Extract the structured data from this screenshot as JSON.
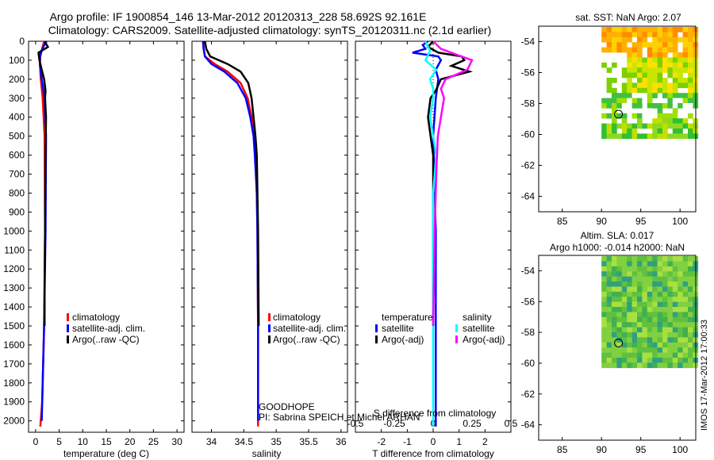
{
  "header": {
    "title_line1": "Argo profile: IF 1900854_146 13-Mar-2012 20120313_228 58.692S 92.161E",
    "title_line2": "Climatology: CARS2009. Satellite-adjusted climatology: synTS_20120311.nc (2.1d earlier)"
  },
  "stamp": "IMOS 17-Mar-2012 17:00:33",
  "annotations": {
    "platform": "GOODHOPE",
    "pi": "PI: Sabrina SPEICH et Michel ARHAN"
  },
  "colors": {
    "climatology": "#ff0000",
    "satellite": "#0000ff",
    "argo": "#000000",
    "sal_satellite": "#00ffff",
    "sal_argo": "#ff00ff"
  },
  "chart_data": [
    {
      "type": "line",
      "name": "temperature-profile",
      "xlabel": "temperature (deg C)",
      "ylabel": "",
      "xlim": [
        -1.5,
        31.5
      ],
      "ylim": [
        2060,
        0
      ],
      "xticks": [
        0,
        5,
        10,
        15,
        20,
        25,
        30
      ],
      "yticks": [
        0,
        100,
        200,
        300,
        400,
        500,
        600,
        700,
        800,
        900,
        1000,
        1100,
        1200,
        1300,
        1400,
        1500,
        1600,
        1700,
        1800,
        1900,
        2000
      ],
      "legend": [
        "climatology",
        "satellite-adj. clim.",
        "Argo(..raw -QC)"
      ],
      "series": [
        {
          "name": "climatology",
          "depth": [
            0,
            40,
            80,
            120,
            200,
            300,
            500,
            1000,
            1500,
            1900,
            2030
          ],
          "values": [
            1.8,
            1.4,
            1.0,
            0.9,
            1.1,
            1.5,
            1.9,
            2.0,
            1.8,
            1.4,
            1.0
          ]
        },
        {
          "name": "satellite-adj. clim.",
          "depth": [
            0,
            40,
            80,
            120,
            200,
            300,
            500,
            1000,
            1500,
            1900,
            2000
          ],
          "values": [
            2.3,
            1.4,
            0.9,
            0.9,
            1.3,
            1.9,
            2.2,
            2.1,
            1.8,
            1.4,
            1.3
          ]
        },
        {
          "name": "Argo(..raw -QC)",
          "depth": [
            0,
            30,
            60,
            100,
            150,
            200,
            260,
            300,
            400,
            600,
            900,
            1000,
            1300,
            1500
          ],
          "values": [
            1.9,
            2.6,
            0.6,
            0.8,
            1.3,
            1.8,
            2.1,
            2.0,
            2.2,
            2.1,
            2.0,
            2.0,
            1.9,
            1.9
          ]
        }
      ]
    },
    {
      "type": "line",
      "name": "salinity-profile",
      "xlabel": "salinity",
      "xlim": [
        33.7,
        36.1
      ],
      "ylim": [
        2060,
        0
      ],
      "xticks": [
        34,
        34.5,
        35,
        35.5,
        36
      ],
      "legend": [
        "climatology",
        "satellite-adj. clim.",
        "Argo(..raw -QC)"
      ],
      "series": [
        {
          "name": "climatology",
          "depth": [
            0,
            40,
            80,
            120,
            160,
            220,
            300,
            400,
            500,
            600,
            800,
            1000,
            1500,
            2000,
            2030
          ],
          "values": [
            33.87,
            33.88,
            33.9,
            34.05,
            34.25,
            34.45,
            34.56,
            34.62,
            34.66,
            34.68,
            34.7,
            34.71,
            34.72,
            34.72,
            34.72
          ]
        },
        {
          "name": "satellite-adj. clim.",
          "depth": [
            0,
            40,
            80,
            120,
            160,
            220,
            300,
            400,
            500,
            600,
            800,
            1000,
            1500,
            2000
          ],
          "values": [
            33.87,
            33.88,
            33.9,
            34.0,
            34.2,
            34.4,
            34.53,
            34.6,
            34.65,
            34.67,
            34.7,
            34.71,
            34.72,
            34.72
          ]
        },
        {
          "name": "Argo(..raw -QC)",
          "depth": [
            0,
            40,
            80,
            120,
            160,
            220,
            300,
            400,
            500,
            600,
            800,
            1000,
            1500
          ],
          "values": [
            33.9,
            33.92,
            33.98,
            34.25,
            34.45,
            34.57,
            34.62,
            34.65,
            34.68,
            34.7,
            34.71,
            34.72,
            34.73
          ]
        }
      ]
    },
    {
      "type": "line",
      "name": "difference-profile",
      "xlabel": "T difference from climatology",
      "secondary_xlabel": "S difference from climatology",
      "xlim": [
        -3,
        3
      ],
      "ylim": [
        2060,
        0
      ],
      "xticks": [
        -2,
        -1,
        0,
        1,
        2
      ],
      "secondary_xticks": [
        -0.5,
        -0.25,
        0,
        0.25,
        0.5
      ],
      "legend_groups": [
        "temperature",
        "salinity"
      ],
      "legend": [
        "satellite",
        "Argo(-adj)",
        "satellite",
        "Argo(-adj)"
      ],
      "series": [
        {
          "name": "temperature satellite",
          "depth": [
            0,
            20,
            40,
            60,
            80,
            100,
            150,
            200,
            300,
            500,
            1000,
            1500,
            2000,
            2030
          ],
          "values": [
            -0.2,
            -0.4,
            -0.3,
            -0.8,
            0.2,
            0.3,
            0.1,
            0.2,
            0.1,
            0.0,
            0.1,
            0.1,
            0.1,
            0.1
          ]
        },
        {
          "name": "temperature Argo(-adj)",
          "depth": [
            0,
            30,
            60,
            80,
            100,
            130,
            160,
            200,
            260,
            300,
            400,
            600,
            1000,
            1500
          ],
          "values": [
            0.0,
            -0.2,
            0.2,
            1.1,
            1.2,
            0.7,
            1.4,
            0.3,
            0.1,
            -0.1,
            -0.2,
            0.0,
            0.0,
            0.0
          ]
        },
        {
          "name": "salinity satellite",
          "depth": [
            0,
            50,
            100,
            150,
            200,
            250,
            300,
            400,
            600,
            800,
            1000,
            1500,
            1900,
            2030
          ],
          "values": [
            -0.05,
            -0.02,
            -0.05,
            0.02,
            -0.02,
            0.0,
            0.0,
            -0.02,
            0.02,
            0.0,
            0.0,
            0.0,
            0.0,
            0.0
          ]
        },
        {
          "name": "salinity Argo(-adj)",
          "depth": [
            0,
            40,
            80,
            100,
            150,
            200,
            250,
            300,
            400,
            500,
            700,
            1000,
            1500
          ],
          "values": [
            0.0,
            0.05,
            0.18,
            0.25,
            0.22,
            0.08,
            0.05,
            0.07,
            0.05,
            0.03,
            0.02,
            0.01,
            0.0
          ]
        }
      ]
    },
    {
      "type": "heatmap",
      "name": "sst-map",
      "title": "sat. SST: NaN Argo: 2.07",
      "xlim": [
        82,
        102
      ],
      "ylim": [
        -65,
        -53
      ],
      "xticks": [
        85,
        90,
        95,
        100
      ],
      "yticks": [
        -54,
        -56,
        -58,
        -60,
        -62,
        -64
      ],
      "marker": {
        "lon": 92.161,
        "lat": -58.692
      }
    },
    {
      "type": "heatmap",
      "name": "sla-map",
      "title_line1": "Altim. SLA: 0.017",
      "title_line2": "Argo h1000: -0.014 h2000: NaN",
      "xlim": [
        82,
        102
      ],
      "ylim": [
        -65,
        -53
      ],
      "xticks": [
        85,
        90,
        95,
        100
      ],
      "yticks": [
        -54,
        -56,
        -58,
        -60,
        -62,
        -64
      ],
      "marker": {
        "lon": 92.161,
        "lat": -58.692
      }
    }
  ]
}
